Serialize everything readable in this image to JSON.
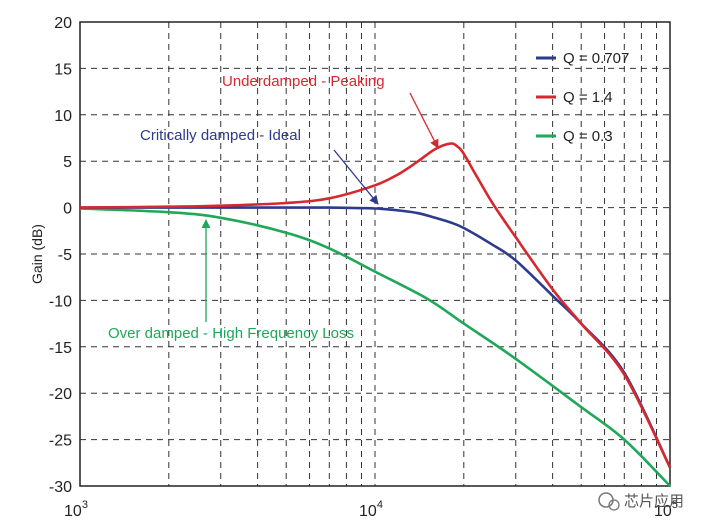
{
  "chart_data": {
    "type": "line",
    "title": "",
    "xlabel": "",
    "ylabel": "Gain (dB)",
    "xscale": "log",
    "xlim": [
      1000,
      100000
    ],
    "ylim": [
      -30,
      20
    ],
    "grid": true,
    "legend_position": "top-right",
    "yticks": [
      "20",
      "15",
      "10",
      "5",
      "0",
      "-5",
      "-10",
      "-15",
      "-20",
      "-25",
      "-30"
    ],
    "xticks": [
      {
        "base": "10",
        "exp": "3"
      },
      {
        "base": "10",
        "exp": "4"
      },
      {
        "base": "10",
        "exp": "5"
      }
    ],
    "series": [
      {
        "name": "Q = 0.707",
        "color": "#2e3a8c",
        "x": [
          1000,
          2000,
          3000,
          5000,
          7000,
          10000,
          12000,
          14000,
          16000,
          18000,
          20000,
          25000,
          30000,
          40000,
          50000,
          70000,
          100000
        ],
        "y": [
          0,
          0,
          0,
          0,
          0,
          -0.1,
          -0.3,
          -0.6,
          -1.1,
          -1.6,
          -2.2,
          -4.0,
          -5.7,
          -9.5,
          -12.5,
          -17.8,
          -28.0
        ]
      },
      {
        "name": "Q = 1.4",
        "color": "#d7282f",
        "x": [
          1000,
          2000,
          3000,
          5000,
          7000,
          10000,
          12000,
          14000,
          16000,
          18000,
          19000,
          20000,
          22000,
          25000,
          30000,
          40000,
          50000,
          70000,
          100000
        ],
        "y": [
          0,
          0.1,
          0.2,
          0.5,
          1.0,
          2.4,
          3.6,
          5.0,
          6.3,
          6.9,
          6.6,
          5.8,
          3.5,
          0.5,
          -3.2,
          -8.8,
          -12.5,
          -18.0,
          -28.0
        ]
      },
      {
        "name": "Q = 0.3",
        "color": "#1fa85a",
        "x": [
          1000,
          2000,
          3000,
          5000,
          7000,
          10000,
          15000,
          20000,
          30000,
          50000,
          70000,
          100000
        ],
        "y": [
          -0.1,
          -0.5,
          -1.1,
          -2.7,
          -4.4,
          -6.9,
          -9.8,
          -12.5,
          -16.3,
          -21.5,
          -25.0,
          -30.0
        ]
      }
    ],
    "annotations": [
      {
        "text": "Underdamped - Peaking",
        "color": "#d7282f"
      },
      {
        "text": "Critically damped - Ideal",
        "color": "#2e3a8c"
      },
      {
        "text": "Over damped - High Frequency Loss",
        "color": "#1fa85a"
      }
    ]
  },
  "watermark": {
    "text": "芯片应用"
  }
}
